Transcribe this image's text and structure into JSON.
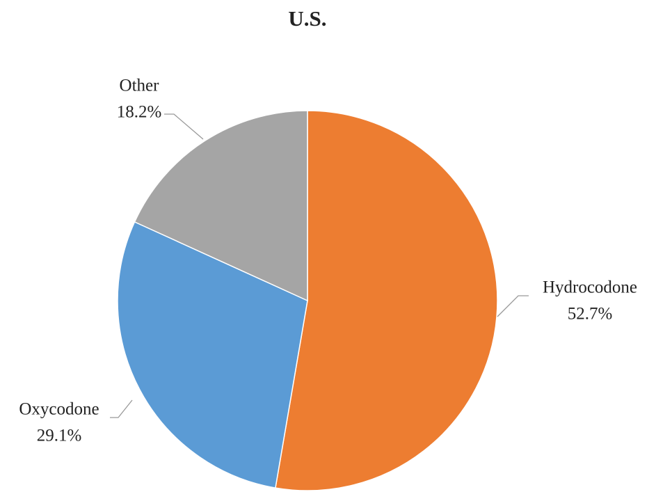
{
  "chart_data": {
    "type": "pie",
    "title": "U.S.",
    "categories": [
      "Hydrocodone",
      "Oxycodone",
      "Other"
    ],
    "values": [
      52.7,
      29.1,
      18.2
    ],
    "value_labels": [
      "52.7%",
      "29.1%",
      "18.2%"
    ],
    "colors": [
      "#ed7d31",
      "#5b9bd5",
      "#a5a5a5"
    ]
  }
}
